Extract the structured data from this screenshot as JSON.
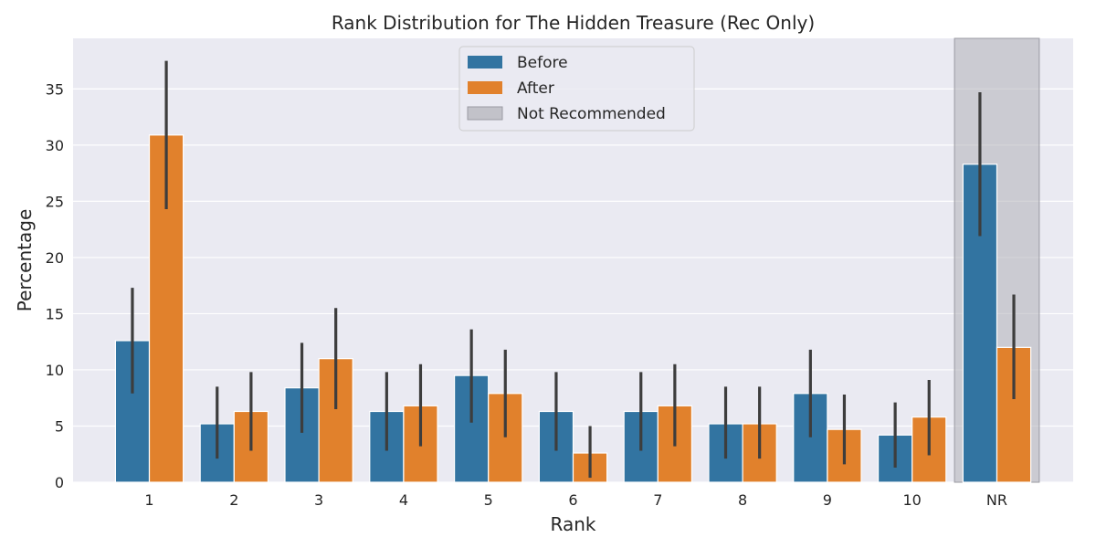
{
  "chart_data": {
    "type": "bar",
    "title": "Rank Distribution for The Hidden Treasure (Rec Only)",
    "xlabel": "Rank",
    "ylabel": "Percentage",
    "categories": [
      "1",
      "2",
      "3",
      "4",
      "5",
      "6",
      "7",
      "8",
      "9",
      "10",
      "NR"
    ],
    "ylim": [
      0,
      39.5
    ],
    "yticks": [
      0,
      5,
      10,
      15,
      20,
      25,
      30,
      35
    ],
    "grid": true,
    "legend_position": "top-center",
    "series": [
      {
        "name": "Before",
        "color": "#3274a1",
        "values": [
          12.6,
          5.2,
          8.4,
          6.3,
          9.5,
          6.3,
          6.3,
          5.2,
          7.9,
          4.2,
          28.3
        ],
        "ci_low": [
          7.9,
          2.1,
          4.4,
          2.8,
          5.3,
          2.8,
          2.8,
          2.1,
          4.0,
          1.3,
          21.9
        ],
        "ci_high": [
          17.3,
          8.5,
          12.4,
          9.8,
          13.6,
          9.8,
          9.8,
          8.5,
          11.8,
          7.1,
          34.7
        ]
      },
      {
        "name": "After",
        "color": "#e1812c",
        "values": [
          30.9,
          6.3,
          11.0,
          6.8,
          7.9,
          2.6,
          6.8,
          5.2,
          4.7,
          5.8,
          12.0
        ],
        "ci_low": [
          24.3,
          2.8,
          6.5,
          3.2,
          4.0,
          0.4,
          3.2,
          2.1,
          1.6,
          2.4,
          7.4
        ],
        "ci_high": [
          37.5,
          9.8,
          15.5,
          10.5,
          11.8,
          5.0,
          10.5,
          8.5,
          7.8,
          9.1,
          16.7
        ]
      }
    ],
    "highlight": {
      "category": "NR",
      "label": "Not Recommended",
      "color": "#b0b0b8"
    }
  }
}
